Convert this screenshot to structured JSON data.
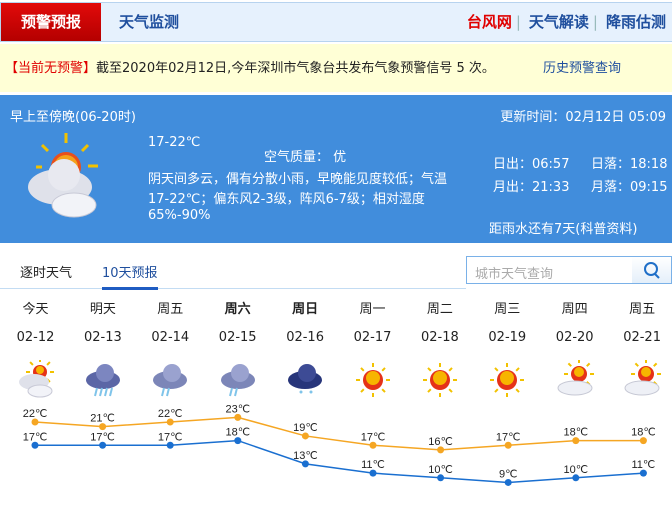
{
  "nav": {
    "active": "预警预报",
    "monitor": "天气监测",
    "typhoon": "台风网",
    "interpret": "天气解读",
    "rain": "降雨估测"
  },
  "warning": {
    "status": "【当前无预警】",
    "text": "截至2020年02月12日,今年深圳市气象台共发布气象预警信号 5 次。",
    "history": "历史预警查询"
  },
  "today": {
    "period": "早上至傍晚(06-20时)",
    "updated": "更新时间：02月12日 05:09",
    "temp": "17-22℃",
    "air": "空气质量： 优",
    "desc1": "阴天间多云，偶有分散小雨，早晚能见度较低；气温",
    "desc2": "17-22℃；偏东风2-3级，阵风6-7级；相对湿度",
    "desc3": "65%-90%",
    "sunrise": "日出：06:57",
    "sunset": "日落：18:18",
    "moonrise": "月出：21:33",
    "moonset": "月落：09:15",
    "rain": "距雨水还有7天(科普资料)",
    "icon": "partly-cloudy-icon"
  },
  "tabs": [
    "逐时天气",
    "10天预报"
  ],
  "search": {
    "placeholder": "城市天气查询"
  },
  "colors": {
    "high": "#f5a623",
    "low": "#1a6fd0",
    "red": "#e00000",
    "blue": "#418ddc"
  },
  "forecast": [
    {
      "day": "今天",
      "date": "02-12",
      "icon": "cloudy-sun"
    },
    {
      "day": "明天",
      "date": "02-13",
      "icon": "heavy-rain"
    },
    {
      "day": "周五",
      "date": "02-14",
      "icon": "moderate-rain"
    },
    {
      "day": "周六",
      "date": "02-15",
      "icon": "moderate-rain",
      "bold": true
    },
    {
      "day": "周日",
      "date": "02-16",
      "icon": "light-rain",
      "bold": true
    },
    {
      "day": "周一",
      "date": "02-17",
      "icon": "sunny"
    },
    {
      "day": "周二",
      "date": "02-18",
      "icon": "sunny"
    },
    {
      "day": "周三",
      "date": "02-19",
      "icon": "sunny"
    },
    {
      "day": "周四",
      "date": "02-20",
      "icon": "sun-cloud"
    },
    {
      "day": "周五",
      "date": "02-21",
      "icon": "sun-cloud"
    }
  ],
  "chart_data": {
    "type": "line",
    "categories": [
      "02-12",
      "02-13",
      "02-14",
      "02-15",
      "02-16",
      "02-17",
      "02-18",
      "02-19",
      "02-20",
      "02-21"
    ],
    "series": [
      {
        "values": [
          22,
          21,
          22,
          23,
          19,
          17,
          16,
          17,
          18,
          18
        ]
      },
      {
        "values": [
          17,
          17,
          17,
          18,
          13,
          11,
          10,
          9,
          10,
          11
        ]
      }
    ],
    "unit": "℃"
  }
}
